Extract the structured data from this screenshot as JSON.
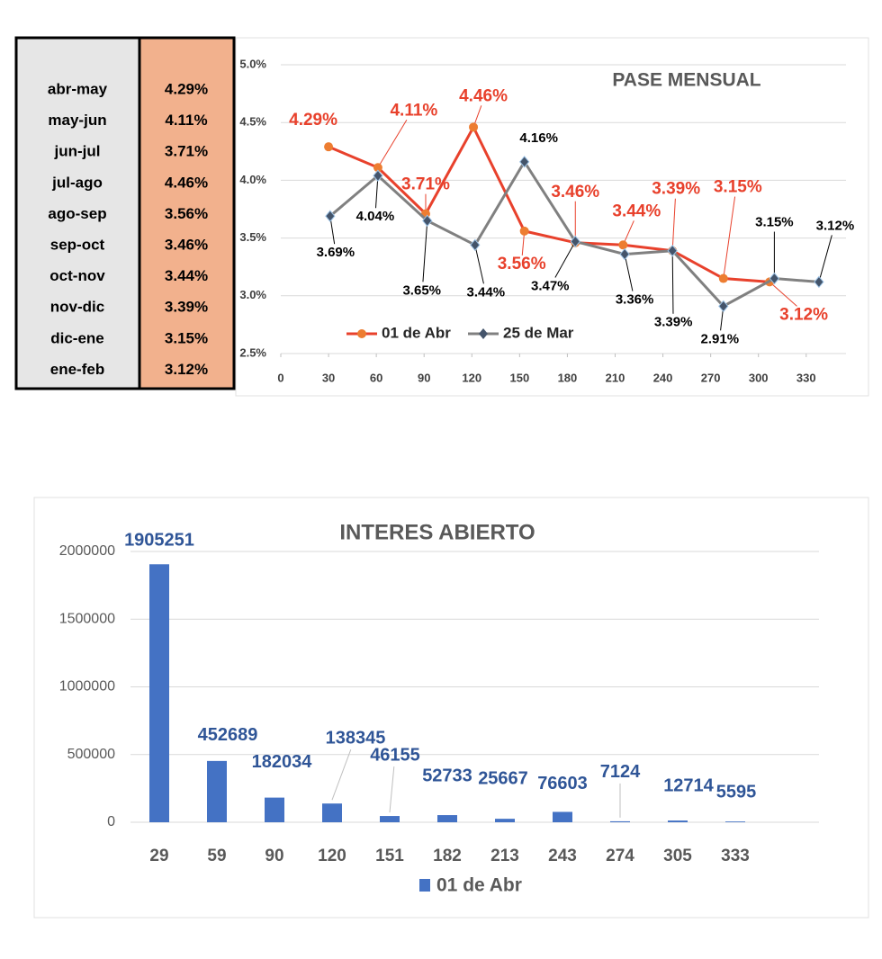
{
  "table": {
    "rows": [
      [
        "abr-may",
        "4.29%"
      ],
      [
        "may-jun",
        "4.11%"
      ],
      [
        "jun-jul",
        "3.71%"
      ],
      [
        "jul-ago",
        "4.46%"
      ],
      [
        "ago-sep",
        "3.56%"
      ],
      [
        "sep-oct",
        "3.46%"
      ],
      [
        "oct-nov",
        "3.44%"
      ],
      [
        "nov-dic",
        "3.39%"
      ],
      [
        "dic-ene",
        "3.15%"
      ],
      [
        "ene-feb",
        "3.12%"
      ]
    ]
  },
  "chart_data": [
    {
      "type": "line",
      "title": "PASE MENSUAL",
      "xlim": [
        0,
        355
      ],
      "xticks": [
        0,
        30,
        60,
        90,
        120,
        150,
        180,
        210,
        240,
        270,
        300,
        330
      ],
      "ylim": [
        2.5,
        5.0
      ],
      "yticks": [
        {
          "value": 2.5,
          "label": "2.5%"
        },
        {
          "value": 3.0,
          "label": "3.0%"
        },
        {
          "value": 3.5,
          "label": "3.5%"
        },
        {
          "value": 4.0,
          "label": "4.0%"
        },
        {
          "value": 4.5,
          "label": "4.5%"
        },
        {
          "value": 5.0,
          "label": "5.0%"
        }
      ],
      "grid": true,
      "legend": "lower left",
      "series": [
        {
          "name": "01 de Abr",
          "color": "#e8412c",
          "marker_color": "#ed7d31",
          "label_color": "#e8412c",
          "x": [
            30,
            61,
            91,
            121,
            153,
            185,
            215,
            246,
            278,
            307
          ],
          "values": [
            4.29,
            4.11,
            3.71,
            4.46,
            3.56,
            3.46,
            3.44,
            3.39,
            3.15,
            3.12
          ],
          "value_labels": [
            "4.29%",
            "4.11%",
            "3.71%",
            "4.46%",
            "3.56%",
            "3.46%",
            "3.44%",
            "3.39%",
            "3.15%",
            "3.12%"
          ]
        },
        {
          "name": "25 de Mar",
          "color": "#808080",
          "marker_color": "#44546a",
          "label_color": "#000000",
          "x": [
            31,
            61,
            92,
            122,
            153,
            185,
            216,
            246,
            278,
            310,
            338
          ],
          "values": [
            3.69,
            4.04,
            3.65,
            3.44,
            4.16,
            3.47,
            3.36,
            3.39,
            2.91,
            3.15,
            3.12
          ],
          "value_labels": [
            "3.69%",
            "4.04%",
            "3.65%",
            "3.44%",
            "4.16%",
            "3.47%",
            "3.36%",
            "3.39%",
            "2.91%",
            "3.15%",
            "3.12%"
          ]
        }
      ]
    },
    {
      "type": "bar",
      "title": "INTERES ABIERTO",
      "categories": [
        "29",
        "59",
        "90",
        "120",
        "151",
        "182",
        "213",
        "243",
        "274",
        "305",
        "333"
      ],
      "ylim": [
        0,
        2000000
      ],
      "yticks": [
        0,
        500000,
        1000000,
        1500000,
        2000000
      ],
      "grid": true,
      "legend": "bottom",
      "series": [
        {
          "name": "01 de Abr",
          "color": "#4472c4",
          "label_color": "#2f5597",
          "values": [
            1905251,
            452689,
            182034,
            138345,
            46155,
            52733,
            25667,
            76603,
            7124,
            12714,
            5595
          ]
        }
      ]
    }
  ]
}
